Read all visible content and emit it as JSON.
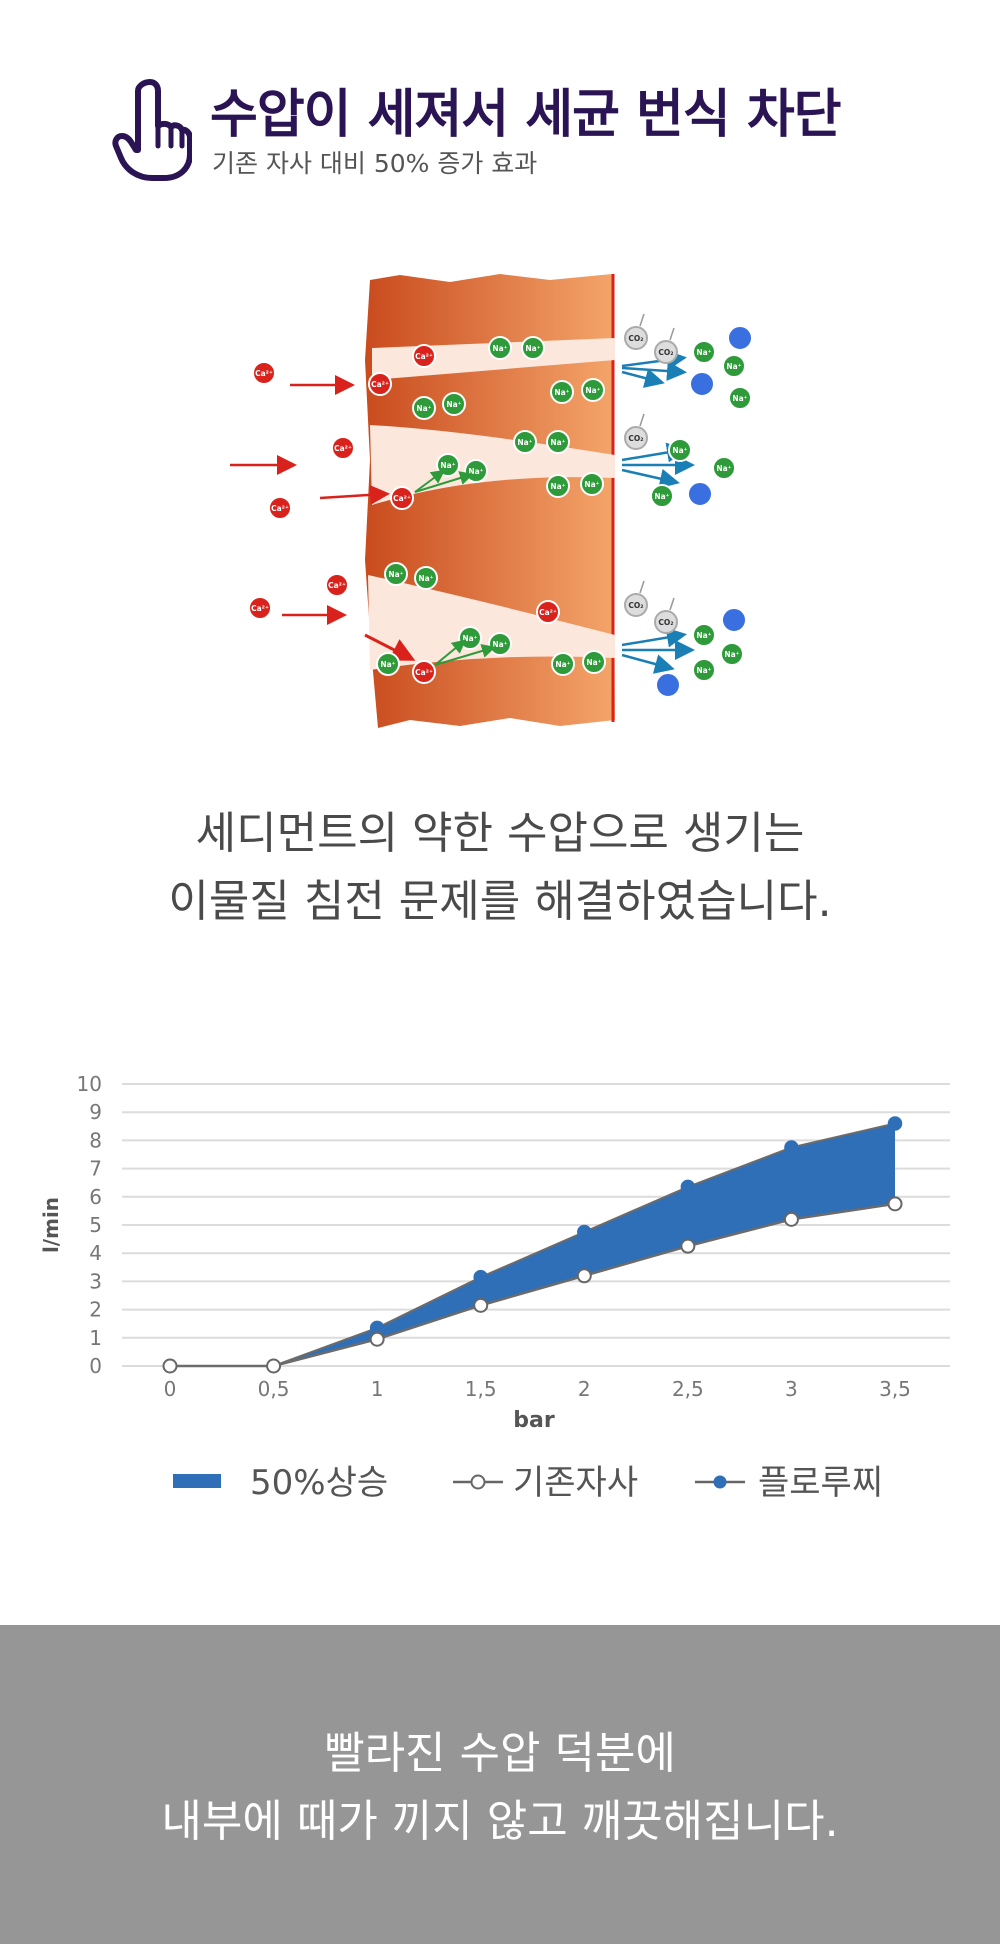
{
  "header": {
    "title": "수압이 세져서 세균 번식 차단",
    "subtitle": "기존 자사 대비 50% 증가 효과"
  },
  "icons": {
    "header_icon": "hand-pointing-up-icon"
  },
  "diagram": {
    "ion_labels": {
      "ca": "Ca²⁺",
      "na": "Na⁺",
      "co2": "CO₂"
    },
    "colors": {
      "filter_dark": "#c94b1e",
      "filter_light": "#f4a56a",
      "ca_ion": "#d9221c",
      "na_ion": "#2e9a3a",
      "co2_ion": "#dddddd",
      "blue_ion": "#3a6fe0",
      "red_arrow": "#d9221c",
      "green_arrow": "#2e9a3a",
      "blue_arrow": "#1a7fb5"
    }
  },
  "description": {
    "line1": "세디먼트의 약한 수압으로 생기는",
    "line2": "이물질 침전 문제를 해결하였습니다."
  },
  "chart_data": {
    "type": "area",
    "x": [
      "0",
      "0,5",
      "1",
      "1,5",
      "2",
      "2,5",
      "3",
      "3,5"
    ],
    "xlabel": "bar",
    "ylabel": "l/min",
    "ylim": [
      0,
      10
    ],
    "yticks": [
      "0",
      "1",
      "2",
      "3",
      "4",
      "5",
      "6",
      "7",
      "8",
      "9",
      "10"
    ],
    "grid": true,
    "legend": "bottom",
    "series": [
      {
        "name": "50%상승",
        "kind": "band",
        "color": "#2f6fb8"
      },
      {
        "name": "기존자사",
        "kind": "line",
        "marker": "open-circle",
        "values": [
          0,
          0,
          0.95,
          2.15,
          3.2,
          4.25,
          5.2,
          5.75
        ],
        "color": "#666666"
      },
      {
        "name": "플로루찌",
        "kind": "line",
        "marker": "filled-circle",
        "values": [
          0,
          0,
          1.35,
          3.15,
          4.75,
          6.35,
          7.75,
          8.6
        ],
        "color": "#2f6fb8"
      }
    ]
  },
  "footer": {
    "line1": "빨라진 수압 덕분에",
    "line2": "내부에 때가 끼지 않고 깨끗해집니다.",
    "background": "#969696"
  }
}
